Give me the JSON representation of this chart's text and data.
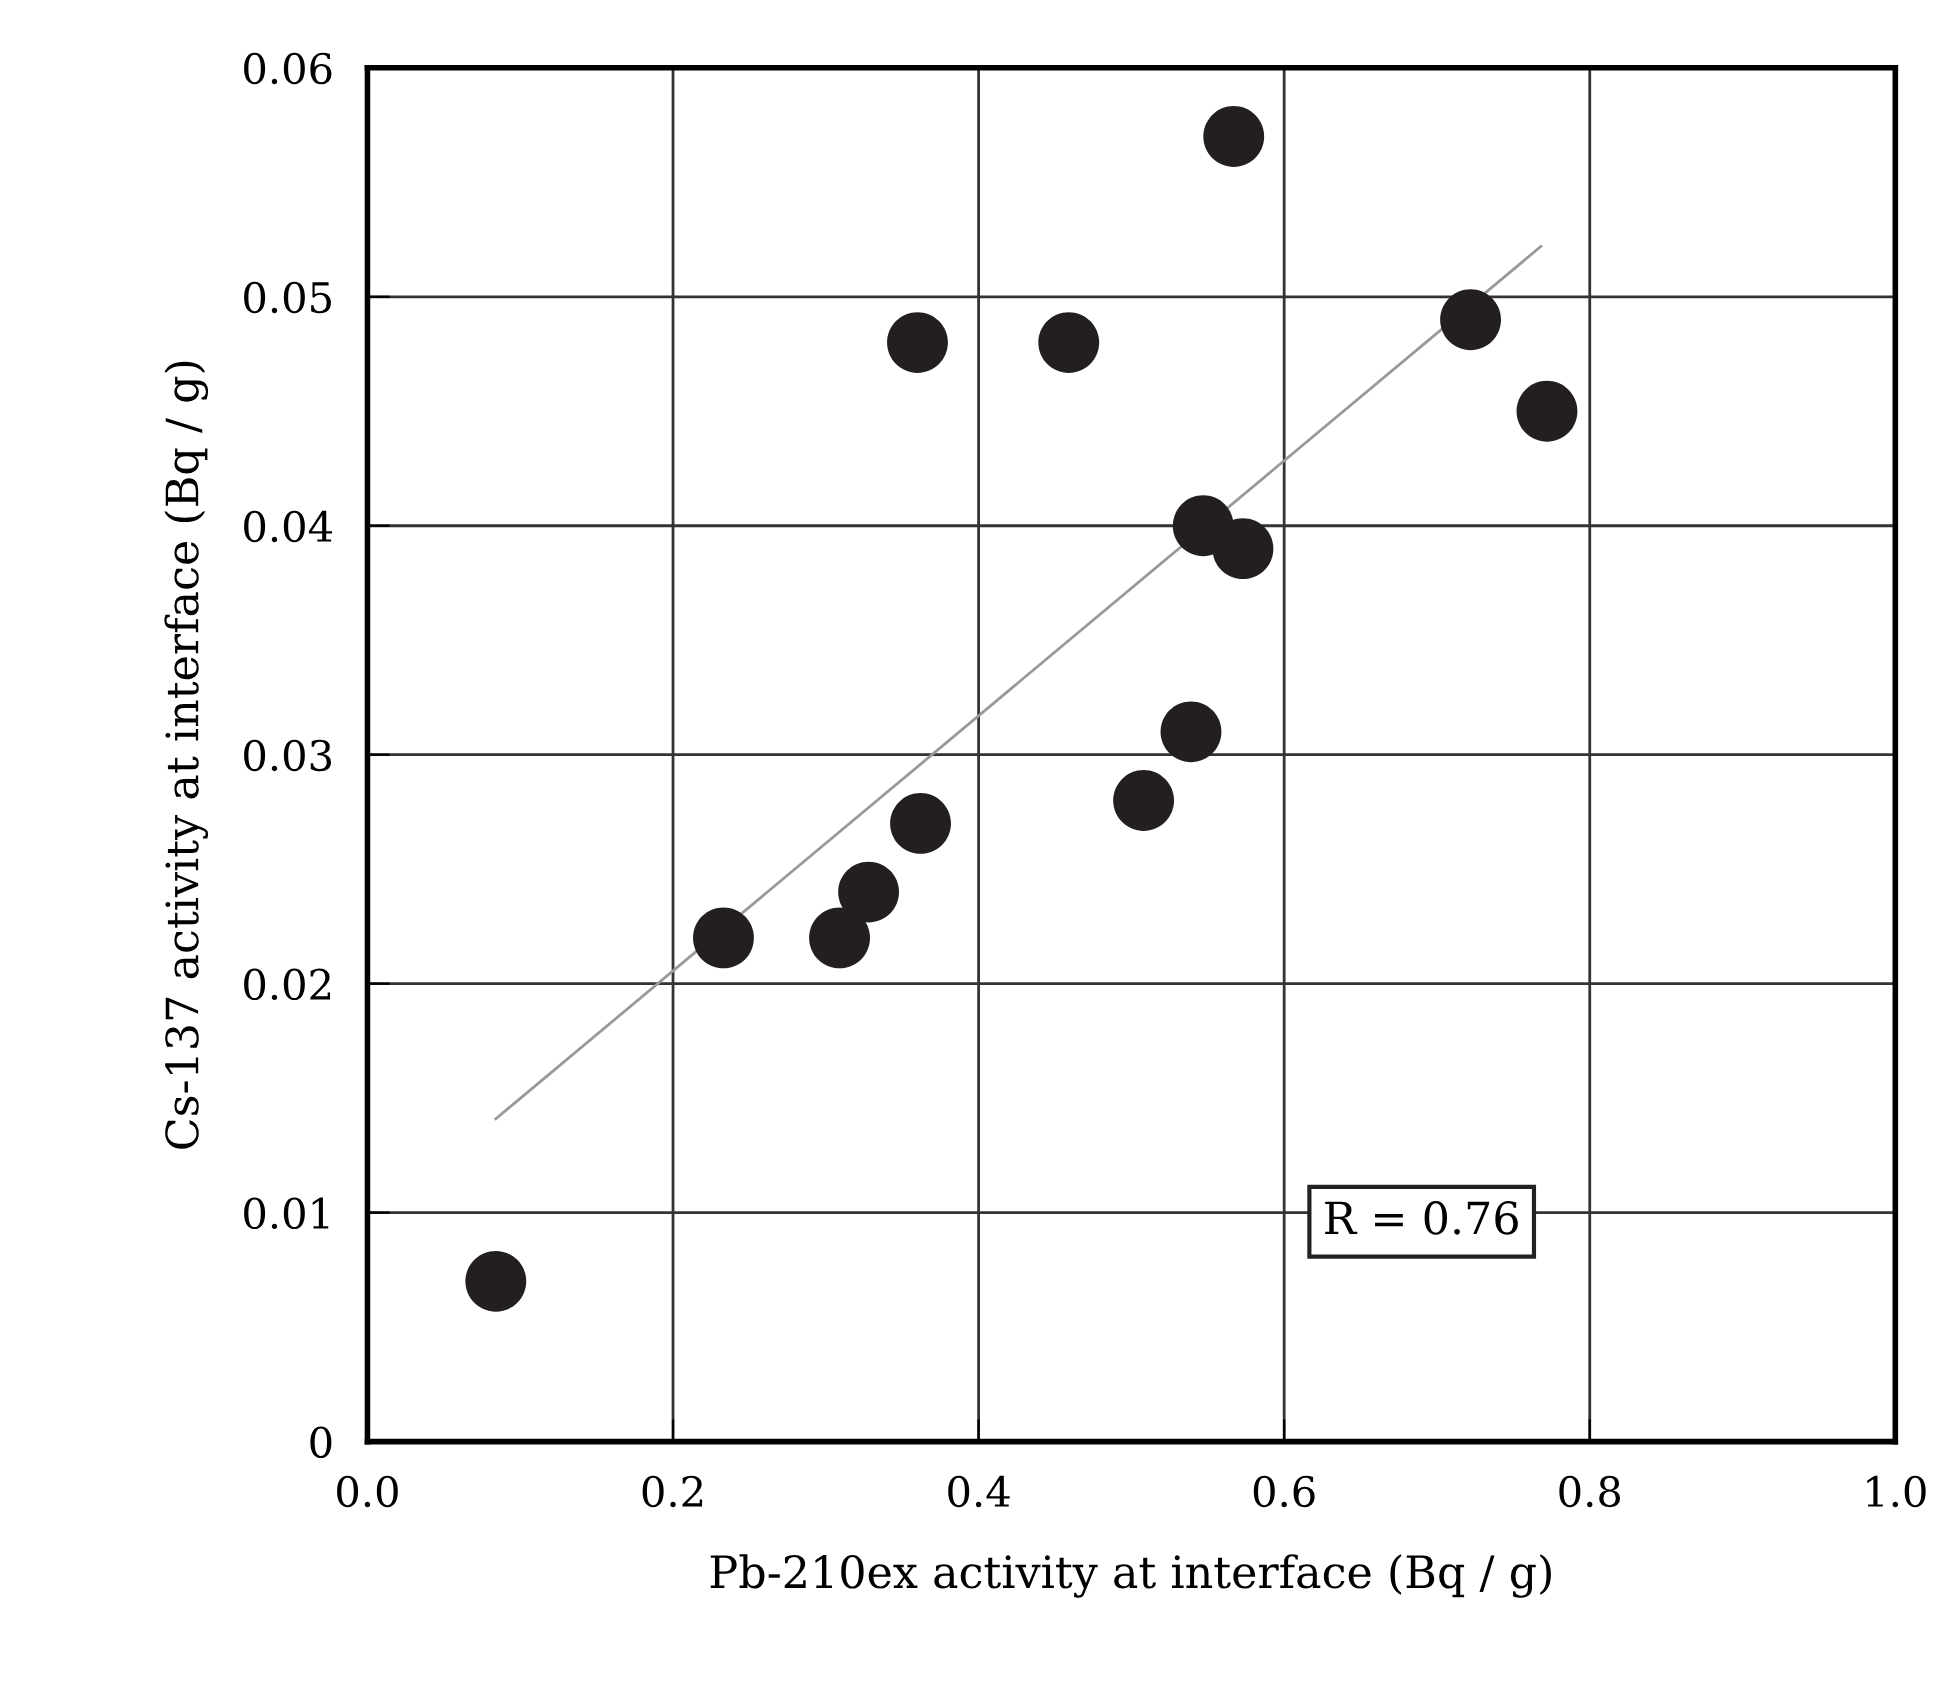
{
  "chart_data": {
    "type": "scatter",
    "xlabel": "Pb-210ex activity at interface (Bq / g)",
    "ylabel": "Cs-137 activity at interface (Bq / g)",
    "xlim": [
      0,
      1.0
    ],
    "ylim": [
      0,
      0.06
    ],
    "xticks": [
      {
        "value": 0,
        "label": "0.0"
      },
      0.2,
      0.4,
      0.6,
      0.8,
      {
        "value": 1.0,
        "label": "1.0"
      }
    ],
    "yticks": [
      0,
      0.01,
      0.02,
      0.03,
      0.04,
      0.05,
      0.06
    ],
    "grid": true,
    "marker": "circle",
    "series": [
      {
        "color": "#231f20",
        "x": [
          0.084,
          0.233,
          0.309,
          0.328,
          0.362,
          0.36,
          0.459,
          0.508,
          0.539,
          0.547,
          0.573,
          0.567,
          0.722,
          0.772
        ],
        "values": [
          0.007,
          0.022,
          0.022,
          0.024,
          0.027,
          0.048,
          0.048,
          0.028,
          0.031,
          0.04,
          0.039,
          0.057,
          0.049,
          0.045
        ]
      },
      {
        "type": "line",
        "color": "#999999",
        "line_style": "solid",
        "marker": "none",
        "x": [
          0.084,
          0.768
        ],
        "values": [
          0.0141,
          0.0522
        ]
      }
    ],
    "annotations": [
      "R = 0.76"
    ]
  }
}
